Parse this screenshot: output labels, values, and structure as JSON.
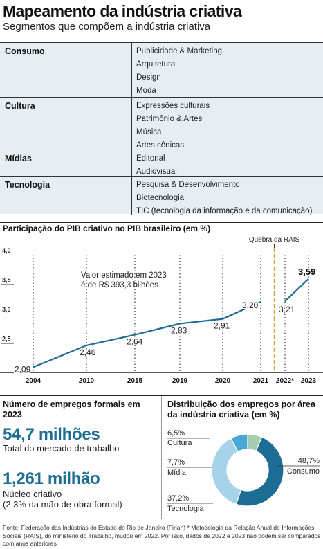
{
  "header": {
    "title": "Mapeamento da indústria criativa",
    "subtitle": "Segmentos que compõem a indústria criativa"
  },
  "segments": [
    {
      "category": "Consumo",
      "items": [
        "Publicidade & Marketing",
        "Arquitetura",
        "Design",
        "Moda"
      ]
    },
    {
      "category": "Cultura",
      "items": [
        "Expressões culturais",
        "Patrimônio & Artes",
        "Música",
        "Artes cênicas"
      ]
    },
    {
      "category": "Mídias",
      "items": [
        "Editorial",
        "Audiovisual"
      ]
    },
    {
      "category": "Tecnologia",
      "items": [
        "Pesquisa & Desenvolvimento",
        "Biotecnologia",
        "TIC (tecnologia da informação e da comunicação)"
      ]
    }
  ],
  "colors": {
    "line": "#1c6d94",
    "table_bg": "#e6eef3",
    "rais_line": "#e0a030",
    "consumo": "#1c6d94",
    "tecnologia": "#a7d3ea",
    "midia": "#4aa8d8",
    "cultura": "#a8ccb0"
  },
  "chart_data": [
    {
      "type": "line",
      "title": "Participação do PIB criativo no PIB brasileiro (em %)",
      "categories": [
        "2004",
        "2010",
        "2015",
        "2019",
        "2020",
        "2021",
        "2022*",
        "2023"
      ],
      "series": [
        {
          "values": [
            2.09,
            2.46,
            2.64,
            2.83,
            2.91,
            3.2,
            3.21,
            3.59
          ]
        }
      ],
      "value_labels": [
        "2,09",
        "2,46",
        "2,64",
        "2,83",
        "2,91",
        "3,20",
        "3,21",
        "3,59"
      ],
      "break_between": [
        "2021",
        "2022*"
      ],
      "break_label": "Quebra da RAIS",
      "annotation": [
        "Valor estimado em 2023",
        "é de R$ 393,3 bilhões"
      ],
      "yticks": [
        "2,5",
        "3,0",
        "3,5",
        "4,0"
      ],
      "ytick_values": [
        2.5,
        3.0,
        3.5,
        4.0
      ],
      "ylim": [
        2.0,
        4.0
      ],
      "grid": "dotted vertical lines at each year",
      "xlabel": "",
      "ylabel": ""
    },
    {
      "type": "pie",
      "title": "Distribuição dos empregos por área da indústria criativa (em %)",
      "slices": [
        {
          "name": "Consumo",
          "value": 48.7,
          "label": "48,7%"
        },
        {
          "name": "Tecnologia",
          "value": 37.2,
          "label": "37,2%"
        },
        {
          "name": "Mídia",
          "value": 7.7,
          "label": "7,7%"
        },
        {
          "name": "Cultura",
          "value": 6.5,
          "label": "6,5%"
        }
      ]
    }
  ],
  "employment": {
    "title": "Número de empregos formais em 2023",
    "total_value": "54,7 milhões",
    "total_desc": "Total do mercado de trabalho",
    "core_value": "1,261 milhão",
    "core_desc_1": "Núcleo criativo",
    "core_desc_2": "(2,3% da mão de obra formal)"
  },
  "source": "Fonte: Federação das Indústrias do Estado do Rio de Janeiro (Firjan)  * Metodologia da Relação Anual de Informações Sociais (RAIS), do ministério do Trabalho, mudou em 2022. Por isso, dados de 2022 e 2023 não podem ser comparados com anos anteriores"
}
